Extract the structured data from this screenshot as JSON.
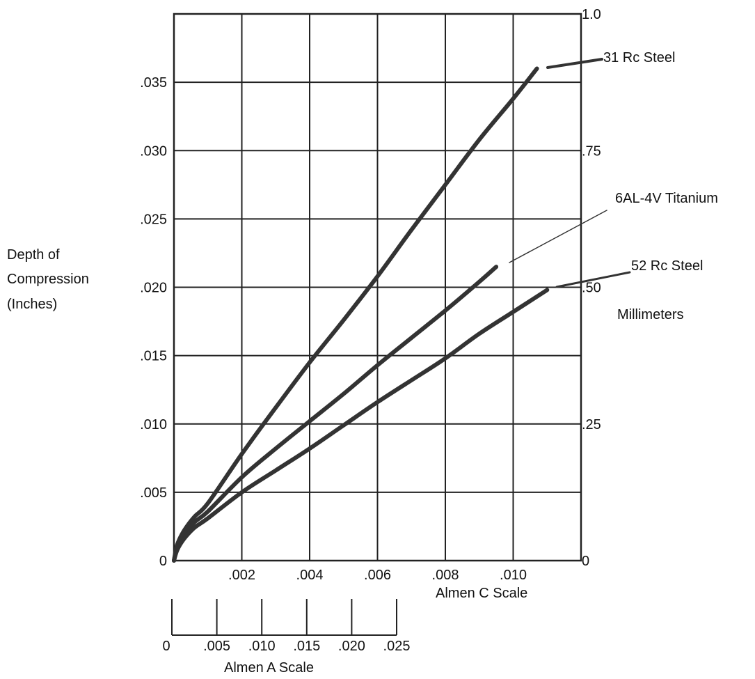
{
  "chart_data": {
    "type": "line",
    "title": "",
    "ylabel": [
      "Depth of",
      "Compression",
      "(Inches)"
    ],
    "y2label": "Millimeters",
    "xlabel": "Almen C Scale",
    "x2label": "Almen A Scale",
    "xlim": [
      0,
      0.012
    ],
    "ylim": [
      0,
      0.04
    ],
    "y2lim": [
      0,
      1.0
    ],
    "grid": true,
    "x_ticks": [
      {
        "value": 0.002,
        "label": ".002"
      },
      {
        "value": 0.004,
        "label": ".004"
      },
      {
        "value": 0.006,
        "label": ".006"
      },
      {
        "value": 0.008,
        "label": ".008"
      },
      {
        "value": 0.01,
        "label": ".010"
      }
    ],
    "y_ticks": [
      {
        "value": 0,
        "label": "0"
      },
      {
        "value": 0.005,
        "label": ".005"
      },
      {
        "value": 0.01,
        "label": ".010"
      },
      {
        "value": 0.015,
        "label": ".015"
      },
      {
        "value": 0.02,
        "label": ".020"
      },
      {
        "value": 0.025,
        "label": ".025"
      },
      {
        "value": 0.03,
        "label": ".030"
      },
      {
        "value": 0.035,
        "label": ".035"
      }
    ],
    "y2_ticks": [
      {
        "value": 0,
        "label": "0"
      },
      {
        "value": 0.25,
        "label": ".25"
      },
      {
        "value": 0.5,
        "label": ".50"
      },
      {
        "value": 0.75,
        "label": ".75"
      },
      {
        "value": 1.0,
        "label": "1.0"
      }
    ],
    "a_scale_ticks": [
      {
        "value": 0,
        "label": "0"
      },
      {
        "value": 0.005,
        "label": ".005"
      },
      {
        "value": 0.01,
        "label": ".010"
      },
      {
        "value": 0.015,
        "label": ".015"
      },
      {
        "value": 0.02,
        "label": ".020"
      },
      {
        "value": 0.025,
        "label": ".025"
      }
    ],
    "a_scale_lim": [
      0,
      0.025
    ],
    "series": [
      {
        "name": "31 Rc Steel",
        "x": [
          0,
          0.0001,
          0.0003,
          0.0006,
          0.001,
          0.002,
          0.003,
          0.004,
          0.005,
          0.006,
          0.007,
          0.008,
          0.009,
          0.01,
          0.0107
        ],
        "y": [
          0,
          0.0012,
          0.0022,
          0.0032,
          0.0042,
          0.0078,
          0.0112,
          0.0145,
          0.0176,
          0.0208,
          0.0242,
          0.0275,
          0.0308,
          0.0338,
          0.036
        ]
      },
      {
        "name": "6AL-4V Titanium",
        "x": [
          0,
          0.0001,
          0.0003,
          0.0006,
          0.001,
          0.002,
          0.003,
          0.004,
          0.005,
          0.006,
          0.007,
          0.008,
          0.009,
          0.0095
        ],
        "y": [
          0,
          0.001,
          0.0019,
          0.0028,
          0.0036,
          0.0061,
          0.0082,
          0.0102,
          0.0122,
          0.0143,
          0.0163,
          0.0183,
          0.0204,
          0.0215
        ]
      },
      {
        "name": "52 Rc Steel",
        "x": [
          0,
          0.0001,
          0.0003,
          0.0006,
          0.001,
          0.002,
          0.003,
          0.004,
          0.005,
          0.006,
          0.007,
          0.008,
          0.009,
          0.01,
          0.011
        ],
        "y": [
          0,
          0.0008,
          0.0016,
          0.0024,
          0.0031,
          0.005,
          0.0066,
          0.0082,
          0.0099,
          0.0116,
          0.0132,
          0.0148,
          0.0166,
          0.0182,
          0.0198
        ]
      }
    ]
  }
}
